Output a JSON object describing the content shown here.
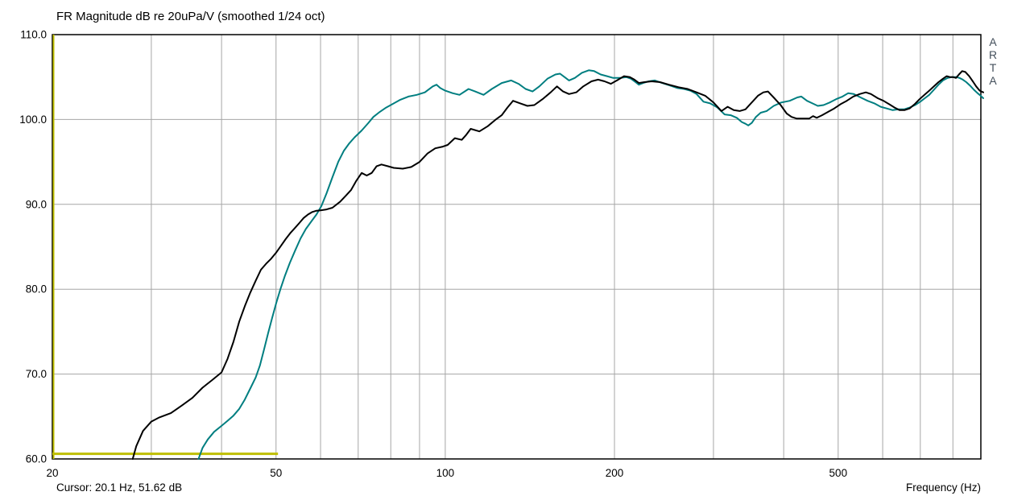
{
  "window": {
    "title": "FR Magnitude dB re 20uPa/V (smoothed 1/24 oct)"
  },
  "statusbar": {
    "cursor_readout": "Cursor: 20.1 Hz, 51.62 dB",
    "x_axis_label": "Frequency (Hz)"
  },
  "logo": {
    "letters": [
      "A",
      "R",
      "T",
      "A"
    ]
  },
  "colors": {
    "curve_main": "#000000",
    "curve_overlay": "#007e80",
    "cursor": "#bfbf00",
    "grid": "#a6a6a6",
    "border": "#000000",
    "background": "#ffffff",
    "logo_text": "#44505c"
  },
  "chart_data": {
    "type": "line",
    "x_scale": "log",
    "x_range_hz": [
      20,
      897
    ],
    "y_range_db": [
      60,
      110
    ],
    "x_major_ticks": [
      20,
      50,
      100,
      200,
      500
    ],
    "x_gridlines": [
      30,
      40,
      50,
      60,
      70,
      80,
      90,
      100,
      200,
      300,
      400,
      500,
      600,
      700,
      800
    ],
    "y_ticks": [
      110,
      100,
      90,
      80,
      70,
      60
    ],
    "y_tick_labels": [
      "110.0",
      "100.0",
      "90.0",
      "80.0",
      "70.0",
      "60.0"
    ],
    "y_gridlines": [
      70,
      80,
      90,
      100
    ],
    "grid_on": true,
    "title": "FR Magnitude dB re 20uPa/V (smoothed 1/24 oct)",
    "xlabel": "Frequency (Hz)",
    "cursor": {
      "freq_hz": 20.1,
      "level_db": 51.62
    },
    "overlay_marker": {
      "from_hz": 20,
      "to_hz": 50.4,
      "db": 60.6
    },
    "series": [
      {
        "name": "fr-curve-overlay-teal",
        "color": "#007e80",
        "points": [
          [
            36.4,
            60
          ],
          [
            37,
            61.3
          ],
          [
            37.8,
            62.3
          ],
          [
            38.8,
            63.2
          ],
          [
            40,
            63.9
          ],
          [
            41,
            64.5
          ],
          [
            42,
            65.1
          ],
          [
            43,
            65.9
          ],
          [
            44,
            67
          ],
          [
            45,
            68.3
          ],
          [
            46,
            69.6
          ],
          [
            46.8,
            71
          ],
          [
            47.6,
            72.9
          ],
          [
            48.4,
            74.8
          ],
          [
            49.2,
            76.6
          ],
          [
            50,
            78.3
          ],
          [
            50.9,
            80
          ],
          [
            51.8,
            81.5
          ],
          [
            52.9,
            83.1
          ],
          [
            54.1,
            84.6
          ],
          [
            55.3,
            86
          ],
          [
            56.5,
            87.1
          ],
          [
            57.8,
            88
          ],
          [
            59,
            88.8
          ],
          [
            60.2,
            89.8
          ],
          [
            61.5,
            91.3
          ],
          [
            63,
            93.2
          ],
          [
            64.5,
            95
          ],
          [
            66,
            96.3
          ],
          [
            67.5,
            97.2
          ],
          [
            69,
            97.9
          ],
          [
            71,
            98.7
          ],
          [
            73,
            99.6
          ],
          [
            74.5,
            100.3
          ],
          [
            76.5,
            100.9
          ],
          [
            78.5,
            101.4
          ],
          [
            80.5,
            101.8
          ],
          [
            83,
            102.3
          ],
          [
            86,
            102.7
          ],
          [
            89,
            102.9
          ],
          [
            92,
            103.2
          ],
          [
            95,
            103.9
          ],
          [
            96.5,
            104.1
          ],
          [
            98,
            103.7
          ],
          [
            100,
            103.4
          ],
          [
            103,
            103.1
          ],
          [
            106,
            102.9
          ],
          [
            110,
            103.6
          ],
          [
            113,
            103.3
          ],
          [
            117,
            102.9
          ],
          [
            121,
            103.6
          ],
          [
            126,
            104.3
          ],
          [
            131,
            104.6
          ],
          [
            135,
            104.2
          ],
          [
            139,
            103.6
          ],
          [
            143,
            103.3
          ],
          [
            147,
            103.9
          ],
          [
            152,
            104.8
          ],
          [
            157,
            105.3
          ],
          [
            160,
            105.4
          ],
          [
            163,
            105
          ],
          [
            166,
            104.6
          ],
          [
            170,
            104.9
          ],
          [
            175,
            105.5
          ],
          [
            180,
            105.8
          ],
          [
            184,
            105.7
          ],
          [
            189,
            105.3
          ],
          [
            194,
            105.1
          ],
          [
            199,
            104.9
          ],
          [
            205,
            104.9
          ],
          [
            210,
            105
          ],
          [
            214,
            104.8
          ],
          [
            218,
            104.4
          ],
          [
            221,
            104.1
          ],
          [
            225,
            104.3
          ],
          [
            230,
            104.5
          ],
          [
            236,
            104.6
          ],
          [
            243,
            104.3
          ],
          [
            251,
            104
          ],
          [
            259,
            103.7
          ],
          [
            266,
            103.6
          ],
          [
            273,
            103.4
          ],
          [
            280,
            103
          ],
          [
            288,
            102.1
          ],
          [
            296,
            101.9
          ],
          [
            305,
            101.4
          ],
          [
            314,
            100.6
          ],
          [
            322,
            100.5
          ],
          [
            330,
            100.2
          ],
          [
            337,
            99.7
          ],
          [
            342,
            99.5
          ],
          [
            346,
            99.3
          ],
          [
            351,
            99.6
          ],
          [
            357,
            100.3
          ],
          [
            364,
            100.8
          ],
          [
            373,
            101
          ],
          [
            384,
            101.6
          ],
          [
            396,
            102
          ],
          [
            410,
            102.2
          ],
          [
            423,
            102.6
          ],
          [
            430,
            102.7
          ],
          [
            440,
            102.2
          ],
          [
            450,
            101.9
          ],
          [
            460,
            101.6
          ],
          [
            471,
            101.7
          ],
          [
            483,
            102
          ],
          [
            496,
            102.4
          ],
          [
            509,
            102.7
          ],
          [
            521,
            103.1
          ],
          [
            533,
            103
          ],
          [
            548,
            102.6
          ],
          [
            564,
            102.2
          ],
          [
            580,
            101.9
          ],
          [
            595,
            101.5
          ],
          [
            610,
            101.3
          ],
          [
            625,
            101.1
          ],
          [
            640,
            101.2
          ],
          [
            655,
            101.2
          ],
          [
            670,
            101.4
          ],
          [
            685,
            101.7
          ],
          [
            700,
            102.1
          ],
          [
            713,
            102.5
          ],
          [
            726,
            102.9
          ],
          [
            740,
            103.5
          ],
          [
            754,
            104.1
          ],
          [
            768,
            104.6
          ],
          [
            783,
            104.9
          ],
          [
            797,
            105
          ],
          [
            810,
            105
          ],
          [
            822,
            104.9
          ],
          [
            833,
            104.7
          ],
          [
            845,
            104.4
          ],
          [
            858,
            104
          ],
          [
            872,
            103.5
          ],
          [
            885,
            103.1
          ],
          [
            896,
            102.8
          ],
          [
            906,
            102.5
          ]
        ]
      },
      {
        "name": "fr-curve-main-black",
        "color": "#000000",
        "points": [
          [
            27.8,
            60
          ],
          [
            28.2,
            61.5
          ],
          [
            29,
            63.3
          ],
          [
            30,
            64.4
          ],
          [
            31,
            64.9
          ],
          [
            32.5,
            65.4
          ],
          [
            34,
            66.3
          ],
          [
            35.5,
            67.2
          ],
          [
            37,
            68.4
          ],
          [
            38.5,
            69.3
          ],
          [
            40,
            70.2
          ],
          [
            41,
            71.8
          ],
          [
            42,
            73.8
          ],
          [
            43,
            76.2
          ],
          [
            44,
            78
          ],
          [
            45,
            79.6
          ],
          [
            46,
            81
          ],
          [
            47,
            82.3
          ],
          [
            48,
            83
          ],
          [
            49,
            83.6
          ],
          [
            50,
            84.3
          ],
          [
            51,
            85.1
          ],
          [
            52,
            85.9
          ],
          [
            53,
            86.6
          ],
          [
            54,
            87.2
          ],
          [
            55,
            87.8
          ],
          [
            56,
            88.4
          ],
          [
            57,
            88.8
          ],
          [
            58,
            89.1
          ],
          [
            59,
            89.25
          ],
          [
            60,
            89.3
          ],
          [
            61.5,
            89.4
          ],
          [
            63,
            89.6
          ],
          [
            65,
            90.3
          ],
          [
            66.5,
            91
          ],
          [
            68,
            91.7
          ],
          [
            69.5,
            92.8
          ],
          [
            71,
            93.7
          ],
          [
            72.5,
            93.4
          ],
          [
            74,
            93.7
          ],
          [
            75.5,
            94.5
          ],
          [
            77,
            94.7
          ],
          [
            79,
            94.5
          ],
          [
            81,
            94.3
          ],
          [
            84,
            94.2
          ],
          [
            87,
            94.4
          ],
          [
            90,
            95
          ],
          [
            93,
            96
          ],
          [
            96,
            96.6
          ],
          [
            99,
            96.8
          ],
          [
            101,
            97
          ],
          [
            104,
            97.8
          ],
          [
            107,
            97.6
          ],
          [
            109,
            98.2
          ],
          [
            111,
            98.9
          ],
          [
            115,
            98.6
          ],
          [
            119,
            99.2
          ],
          [
            123,
            100
          ],
          [
            126,
            100.5
          ],
          [
            129,
            101.4
          ],
          [
            132,
            102.2
          ],
          [
            136,
            101.9
          ],
          [
            140,
            101.6
          ],
          [
            144,
            101.7
          ],
          [
            149,
            102.4
          ],
          [
            154,
            103.2
          ],
          [
            158,
            103.9
          ],
          [
            162,
            103.3
          ],
          [
            166,
            103
          ],
          [
            171,
            103.2
          ],
          [
            176,
            103.9
          ],
          [
            182,
            104.5
          ],
          [
            187,
            104.7
          ],
          [
            192,
            104.5
          ],
          [
            197,
            104.2
          ],
          [
            202,
            104.6
          ],
          [
            208,
            105.1
          ],
          [
            213,
            105
          ],
          [
            217,
            104.7
          ],
          [
            221,
            104.3
          ],
          [
            226,
            104.4
          ],
          [
            233,
            104.5
          ],
          [
            241,
            104.4
          ],
          [
            250,
            104.1
          ],
          [
            260,
            103.8
          ],
          [
            270,
            103.6
          ],
          [
            280,
            103.2
          ],
          [
            290,
            102.8
          ],
          [
            300,
            102
          ],
          [
            310,
            101
          ],
          [
            318,
            101.5
          ],
          [
            326,
            101.1
          ],
          [
            334,
            101
          ],
          [
            342,
            101.2
          ],
          [
            352,
            102.1
          ],
          [
            360,
            102.8
          ],
          [
            368,
            103.2
          ],
          [
            375,
            103.3
          ],
          [
            385,
            102.5
          ],
          [
            395,
            101.7
          ],
          [
            405,
            100.7
          ],
          [
            413,
            100.3
          ],
          [
            422,
            100.1
          ],
          [
            433,
            100.1
          ],
          [
            444,
            100.1
          ],
          [
            451,
            100.4
          ],
          [
            458,
            100.2
          ],
          [
            468,
            100.5
          ],
          [
            480,
            100.9
          ],
          [
            492,
            101.3
          ],
          [
            505,
            101.8
          ],
          [
            518,
            102.2
          ],
          [
            532,
            102.7
          ],
          [
            546,
            103
          ],
          [
            560,
            103.2
          ],
          [
            572,
            103
          ],
          [
            588,
            102.5
          ],
          [
            602,
            102.2
          ],
          [
            616,
            101.8
          ],
          [
            630,
            101.4
          ],
          [
            643,
            101.1
          ],
          [
            656,
            101.1
          ],
          [
            670,
            101.3
          ],
          [
            684,
            101.8
          ],
          [
            698,
            102.4
          ],
          [
            712,
            102.9
          ],
          [
            726,
            103.4
          ],
          [
            740,
            103.9
          ],
          [
            754,
            104.4
          ],
          [
            768,
            104.8
          ],
          [
            780,
            105.1
          ],
          [
            790,
            105
          ],
          [
            800,
            105
          ],
          [
            810,
            104.9
          ],
          [
            820,
            105.3
          ],
          [
            831,
            105.7
          ],
          [
            842,
            105.6
          ],
          [
            855,
            105.1
          ],
          [
            868,
            104.5
          ],
          [
            880,
            103.9
          ],
          [
            893,
            103.4
          ],
          [
            906,
            103.2
          ]
        ]
      }
    ]
  }
}
